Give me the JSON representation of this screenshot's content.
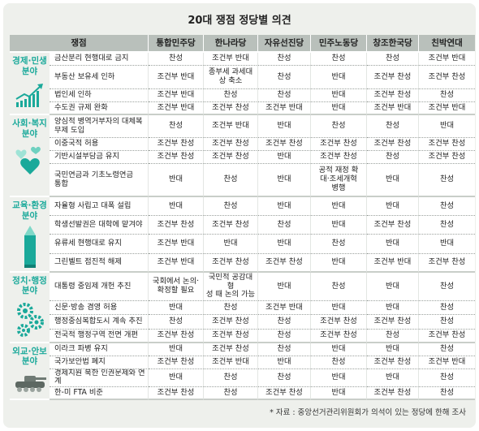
{
  "title": "20대 쟁점 정당별 의견",
  "headers": [
    "쟁점",
    "통합민주당",
    "한나라당",
    "자유선진당",
    "민주노동당",
    "창조한국당",
    "친박연대"
  ],
  "groups": [
    {
      "label": "경제·민생\n분야",
      "icon": "rising-chart-icon",
      "rows": [
        {
          "issue": "금산분리 현행대로 금지",
          "v": [
            "찬성",
            "조건부 반대",
            "찬성",
            "찬성",
            "찬성",
            "조건부 반대"
          ]
        },
        {
          "issue": "부동산 보유세 인하",
          "v": [
            "조건부 반대",
            "종부세 과세대\n상 축소",
            "찬성",
            "반대",
            "조건부 찬성",
            "조건부 찬성"
          ]
        },
        {
          "issue": "법인세 인하",
          "v": [
            "조건부 반대",
            "찬성",
            "찬성",
            "반대",
            "조건부 찬성",
            "찬성"
          ]
        },
        {
          "issue": "수도권 규제 완화",
          "v": [
            "조건부 반대",
            "조건부 찬성",
            "조건부 반대",
            "반대",
            "조건부 반대",
            "조건부 반대"
          ]
        }
      ]
    },
    {
      "label": "사회·복지\n분야",
      "icon": "hearts-icon",
      "rows": [
        {
          "issue": "양심적 병역거부자의 대체복\n무제 도입",
          "v": [
            "찬성",
            "조건부 반대",
            "반대",
            "찬성",
            "찬성",
            "반대"
          ]
        },
        {
          "issue": "이중국적 허용",
          "v": [
            "조건부 찬성",
            "조건부 찬성",
            "조건부 찬성",
            "조건부 찬성",
            "조건부 찬성",
            "조건부 찬성"
          ]
        },
        {
          "issue": "기반시설부담금 유지",
          "v": [
            "조건부 찬성",
            "조건부 찬성",
            "반대",
            "조건부 찬성",
            "찬성",
            "조건부 찬성"
          ]
        },
        {
          "issue": "국민연금과   기초노령연금\n통합",
          "v": [
            "반대",
            "찬성",
            "반대",
            "공적 재정 확\n대·조세개혁\n병행",
            "반대",
            "찬성"
          ]
        }
      ]
    },
    {
      "label": "교육·환경\n분야",
      "icon": "pencil-icon",
      "rows": [
        {
          "issue": "자율형 사립고 대폭 설립",
          "v": [
            "반대",
            "찬성",
            "반대",
            "반대",
            "반대",
            "찬성"
          ]
        },
        {
          "issue": "학생선발권은 대학에 맡겨야",
          "v": [
            "조건부 찬성",
            "조건부 찬성",
            "찬성",
            "반대",
            "조건부 찬성",
            "찬성"
          ]
        },
        {
          "issue": "유류세 현행대로 유지",
          "v": [
            "조건부 반대",
            "반대",
            "반대",
            "찬성",
            "반대",
            "반대"
          ]
        },
        {
          "issue": "그린벨트 점진적 해제",
          "v": [
            "조건부 반대",
            "조건부 찬성",
            "조건부 찬성",
            "반대",
            "조건부 반대",
            "조건부 찬성"
          ]
        }
      ]
    },
    {
      "label": "정치·행정\n분야",
      "icon": "gears-icon",
      "rows": [
        {
          "issue": "대통령 중임제 개헌 추진",
          "v": [
            "국회에서 논의·\n확정할 필요",
            "국민적 공감대 형\n성 때 논의 가능",
            "반대",
            "찬성",
            "반대",
            "찬성"
          ]
        },
        {
          "issue": "신문·방송 겸영 허용",
          "v": [
            "반대",
            "찬성",
            "조건부 반대",
            "반대",
            "반대",
            "찬성"
          ]
        },
        {
          "issue": "행정중심복합도시 계속 추진",
          "v": [
            "찬성",
            "조건부 찬성",
            "찬성",
            "조건부 찬성",
            "조건부 찬성",
            "찬성"
          ]
        },
        {
          "issue": "전국적 행정구역 전면 개편",
          "v": [
            "조건부 찬성",
            "조건부 찬성",
            "찬성",
            "조건부 찬성",
            "찬성",
            "조건부 찬성"
          ]
        }
      ]
    },
    {
      "label": "외교·안보\n분야",
      "icon": "tank-icon",
      "rows": [
        {
          "issue": "이라크 파병 유지",
          "v": [
            "반대",
            "조건부 찬성",
            "찬성",
            "반대",
            "반대",
            "찬성"
          ]
        },
        {
          "issue": "국가보안법 폐지",
          "v": [
            "조건부 찬성",
            "조건부 반대",
            "반대",
            "찬성",
            "조건부 찬성",
            "조건부 반대"
          ]
        },
        {
          "issue": "경제지원 북한 인권문제와 연계",
          "v": [
            "반대",
            "찬성",
            "찬성",
            "반대",
            "반대",
            "찬성"
          ]
        },
        {
          "issue": "한-미 FTA 비준",
          "v": [
            "조건부 찬성",
            "찬성",
            "조건부 찬성",
            "반대",
            "조건부 찬성",
            "찬성"
          ]
        }
      ]
    }
  ],
  "footnote": "* 자료 : 중앙선거관리위원회가 의석이 있는 정당에 한해 조사",
  "colors": {
    "accent": "#1aa99a",
    "header": "#b9c0bb",
    "panel": "#eef0ec"
  }
}
